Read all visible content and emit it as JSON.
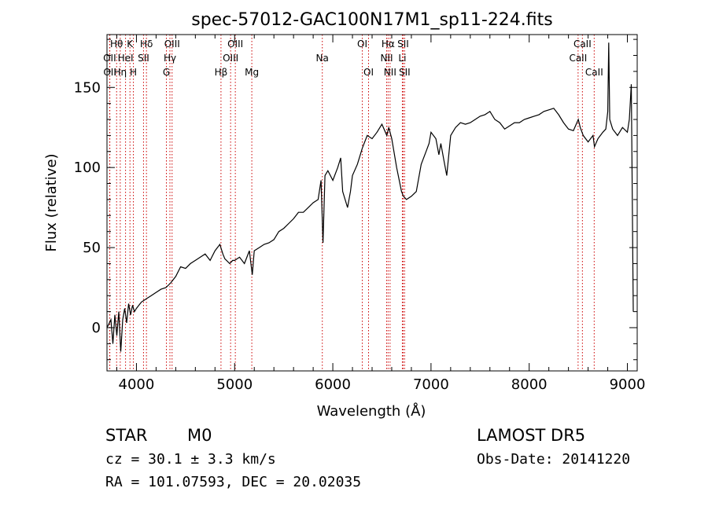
{
  "chart_data": {
    "type": "line",
    "title": "spec-57012-GAC100N17M1_sp11-224.fits",
    "xlabel": "Wavelength (Å)",
    "ylabel": "Flux (relative)",
    "xlim": [
      3700,
      9100
    ],
    "ylim": [
      -27,
      183
    ],
    "x_ticks": [
      4000,
      5000,
      6000,
      7000,
      8000,
      9000
    ],
    "y_ticks": [
      0,
      50,
      100,
      150
    ],
    "grid": false,
    "line_color": "#000000",
    "marker_color": "#cc0000",
    "series": [
      {
        "x": [
          3700,
          3740,
          3760,
          3780,
          3800,
          3820,
          3840,
          3860,
          3880,
          3900,
          3920,
          3940,
          3960,
          3980,
          4000,
          4050,
          4100,
          4150,
          4200,
          4250,
          4300,
          4350,
          4400,
          4450,
          4500,
          4550,
          4600,
          4650,
          4700,
          4750,
          4800,
          4850,
          4880,
          4900,
          4950,
          4980,
          5000,
          5050,
          5100,
          5150,
          5180,
          5200,
          5250,
          5300,
          5350,
          5400,
          5450,
          5500,
          5550,
          5600,
          5650,
          5700,
          5750,
          5800,
          5850,
          5880,
          5900,
          5920,
          5950,
          6000,
          6050,
          6080,
          6100,
          6150,
          6180,
          6200,
          6250,
          6280,
          6300,
          6350,
          6400,
          6450,
          6500,
          6550,
          6570,
          6600,
          6650,
          6700,
          6720,
          6750,
          6800,
          6850,
          6900,
          6950,
          6980,
          7000,
          7050,
          7080,
          7100,
          7130,
          7160,
          7200,
          7250,
          7300,
          7350,
          7400,
          7450,
          7500,
          7550,
          7600,
          7650,
          7700,
          7750,
          7800,
          7850,
          7900,
          7950,
          8000,
          8050,
          8100,
          8150,
          8200,
          8250,
          8300,
          8350,
          8400,
          8450,
          8500,
          8520,
          8550,
          8600,
          8650,
          8665,
          8700,
          8750,
          8780,
          8800,
          8810,
          8820,
          8850,
          8900,
          8950,
          9000,
          9020,
          9040,
          9060
        ],
        "y": [
          0,
          5,
          -10,
          8,
          -5,
          10,
          -15,
          5,
          12,
          3,
          15,
          8,
          14,
          10,
          12,
          16,
          18,
          20,
          22,
          24,
          25,
          28,
          32,
          38,
          37,
          40,
          42,
          44,
          46,
          42,
          48,
          52,
          46,
          43,
          40,
          42,
          42,
          44,
          40,
          48,
          33,
          48,
          50,
          52,
          53,
          55,
          60,
          62,
          65,
          68,
          72,
          72,
          75,
          78,
          80,
          92,
          53,
          95,
          98,
          92,
          100,
          106,
          85,
          75,
          85,
          95,
          102,
          108,
          112,
          120,
          118,
          122,
          127,
          120,
          125,
          118,
          100,
          85,
          82,
          80,
          82,
          85,
          102,
          110,
          115,
          122,
          118,
          108,
          115,
          105,
          95,
          120,
          125,
          128,
          127,
          128,
          130,
          132,
          133,
          135,
          130,
          128,
          124,
          126,
          128,
          128,
          130,
          131,
          132,
          133,
          135,
          136,
          137,
          133,
          128,
          124,
          123,
          130,
          125,
          120,
          116,
          120,
          113,
          118,
          122,
          124,
          135,
          178,
          130,
          124,
          120,
          125,
          122,
          130,
          152,
          10
        ]
      }
    ],
    "line_markers": [
      {
        "label": "Hθ",
        "x": 3798,
        "row": 1
      },
      {
        "label": "OII",
        "x": 3727,
        "row": 2
      },
      {
        "label": "OII",
        "x": 3729,
        "row": 3
      },
      {
        "label": "Hη",
        "x": 3835,
        "row": 3
      },
      {
        "label": "K",
        "x": 3934,
        "row": 1
      },
      {
        "label": "HeI",
        "x": 3889,
        "row": 2
      },
      {
        "label": "H",
        "x": 3969,
        "row": 3
      },
      {
        "label": "Hδ",
        "x": 4102,
        "row": 1
      },
      {
        "label": "SII",
        "x": 4072,
        "row": 2
      },
      {
        "label": "OIII",
        "x": 4363,
        "row": 1
      },
      {
        "label": "Hγ",
        "x": 4341,
        "row": 2
      },
      {
        "label": "G",
        "x": 4305,
        "row": 3
      },
      {
        "label": "OIII",
        "x": 5007,
        "row": 1
      },
      {
        "label": "OIII",
        "x": 4959,
        "row": 2
      },
      {
        "label": "Hβ",
        "x": 4861,
        "row": 3
      },
      {
        "label": "Mg",
        "x": 5175,
        "row": 3
      },
      {
        "label": "Na",
        "x": 5893,
        "row": 2
      },
      {
        "label": "OI",
        "x": 6300,
        "row": 1
      },
      {
        "label": "OI",
        "x": 6364,
        "row": 3
      },
      {
        "label": "Hα",
        "x": 6563,
        "row": 1
      },
      {
        "label": "SII",
        "x": 6716,
        "row": 1
      },
      {
        "label": "NII",
        "x": 6548,
        "row": 2
      },
      {
        "label": "Li",
        "x": 6708,
        "row": 2
      },
      {
        "label": "NII",
        "x": 6583,
        "row": 3
      },
      {
        "label": "SII",
        "x": 6731,
        "row": 3
      },
      {
        "label": "CaII",
        "x": 8542,
        "row": 1
      },
      {
        "label": "CaII",
        "x": 8498,
        "row": 2
      },
      {
        "label": "CaII",
        "x": 8662,
        "row": 3
      }
    ]
  },
  "info": {
    "class": "STAR",
    "subclass": "M0",
    "survey": "LAMOST DR5",
    "cz": "cz = 30.1 ± 3.3 km/s",
    "obs_date": "Obs-Date: 20141220",
    "coords": "RA = 101.07593, DEC =  20.02035"
  }
}
